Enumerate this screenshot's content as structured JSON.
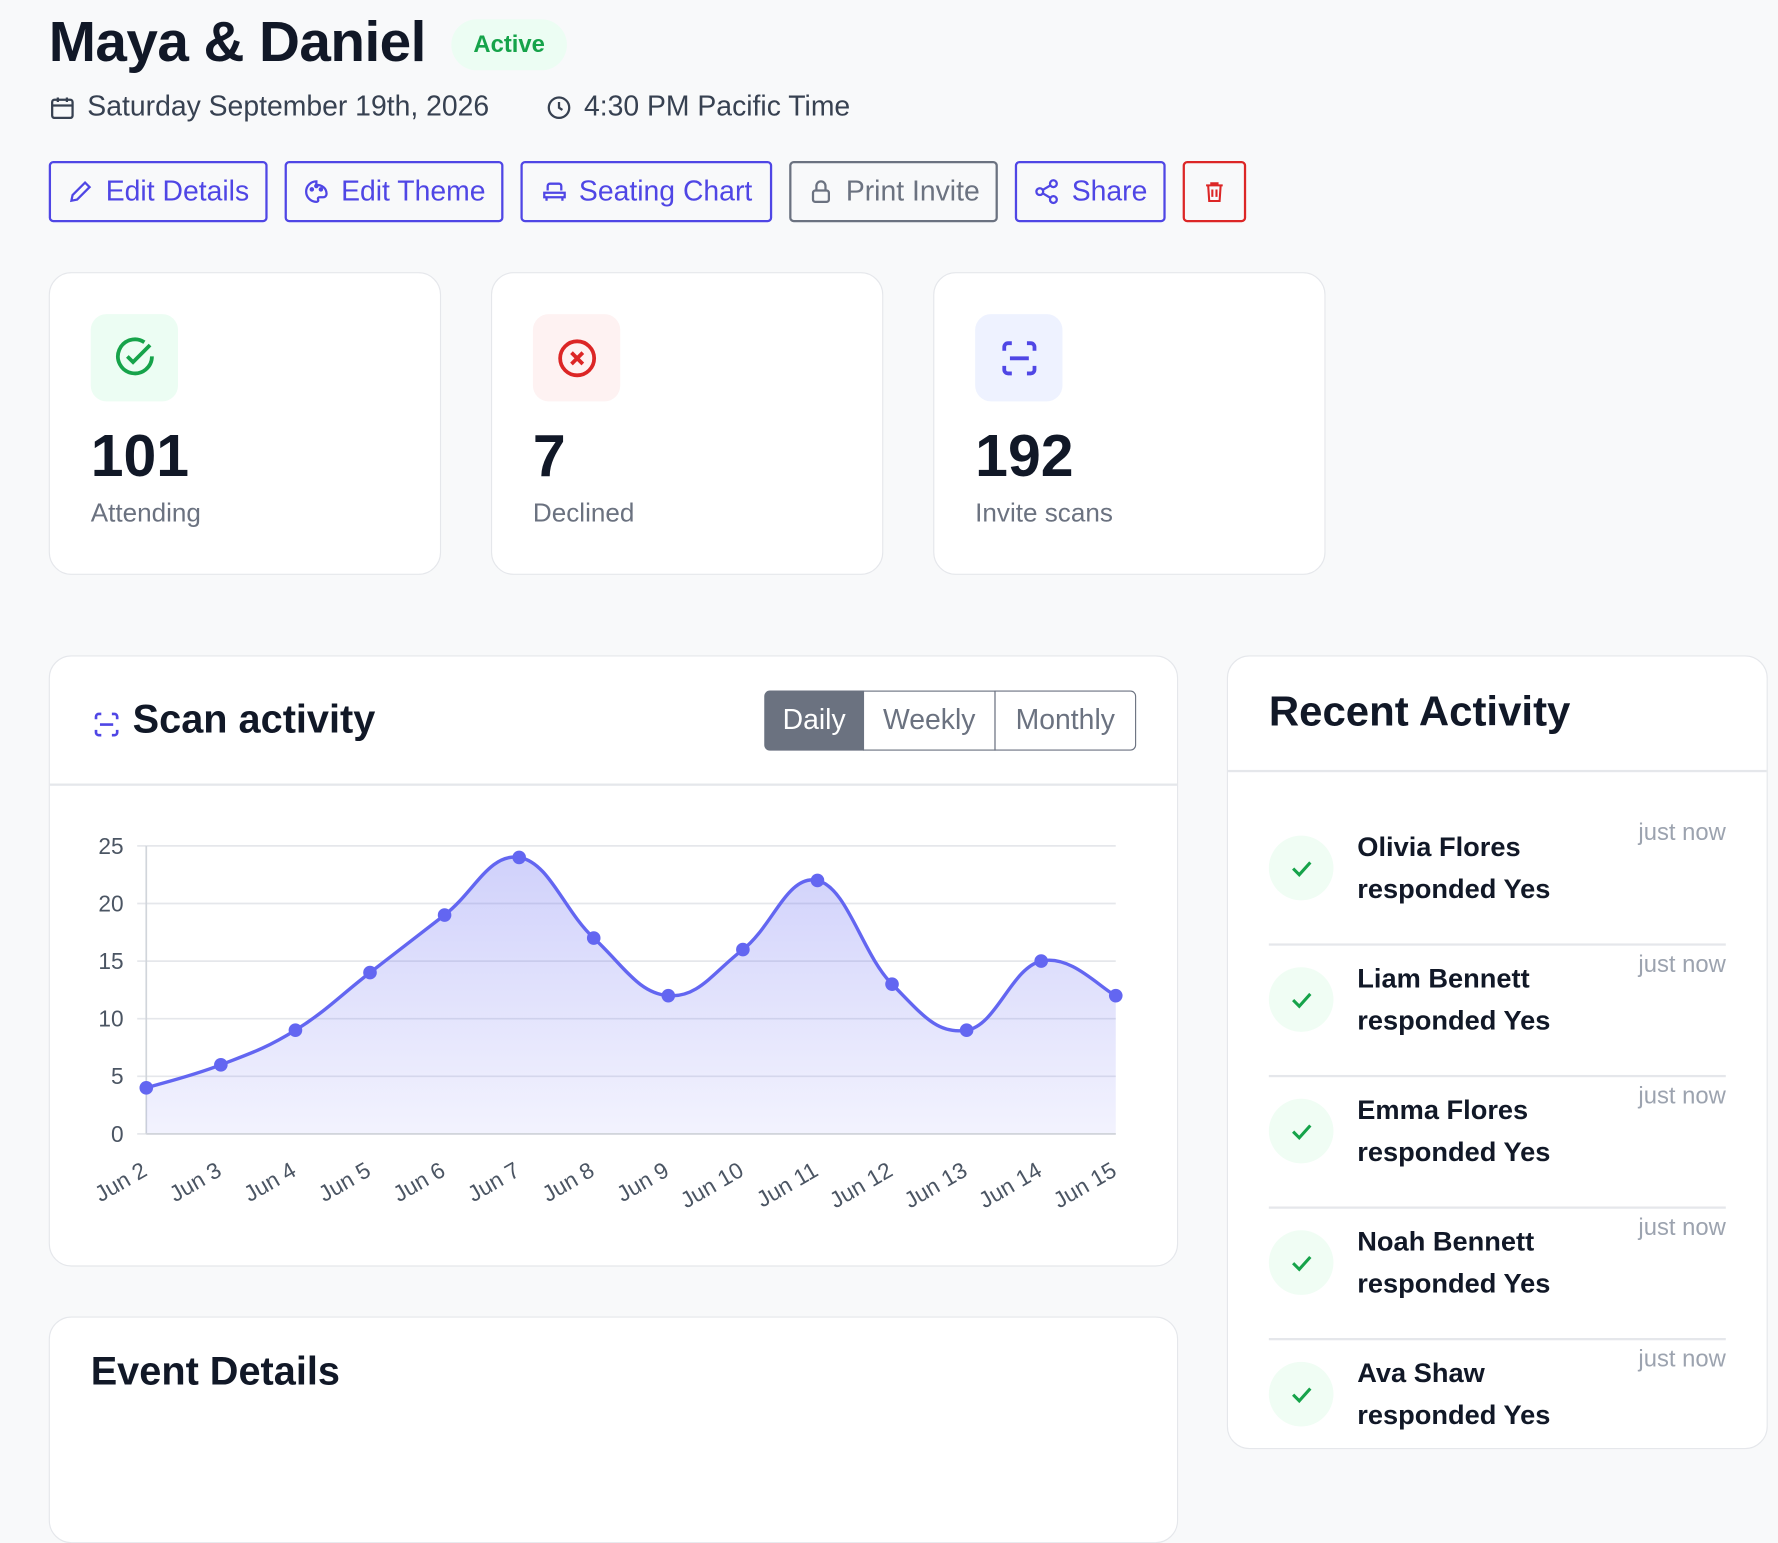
{
  "header": {
    "title": "Maya & Daniel",
    "status": "Active",
    "date": "Saturday September 19th, 2026",
    "time": "4:30 PM Pacific Time"
  },
  "actions": [
    "Edit Details",
    "Edit Theme",
    "Seating Chart",
    "Print Invite",
    "Share"
  ],
  "stats": [
    {
      "value": 101,
      "label": "Attending"
    },
    {
      "value": 7,
      "label": "Declined"
    },
    {
      "value": 192,
      "label": "Invite scans"
    }
  ],
  "scan_activity": {
    "title": "Scan activity",
    "tabs": [
      "Daily",
      "Weekly",
      "Monthly"
    ],
    "chart": {
      "type": "line",
      "categories": [
        "Jun 2",
        "Jun 3",
        "Jun 4",
        "Jun 5",
        "Jun 6",
        "Jun 7",
        "Jun 8",
        "Jun 9",
        "Jun 10",
        "Jun 11",
        "Jun 12",
        "Jun 13",
        "Jun 14",
        "Jun 15"
      ],
      "values": [
        4,
        6,
        9,
        14,
        19,
        24,
        17,
        12,
        16,
        22,
        13,
        9,
        15,
        12
      ],
      "color": "#6366f1",
      "ylim": [
        0,
        25
      ],
      "yticks": [
        0,
        5,
        10,
        15,
        20,
        25
      ],
      "grid": true
    }
  },
  "recent_activity": {
    "title": "Recent Activity",
    "items": [
      {
        "name": "Olivia Flores",
        "action": "responded Yes",
        "time": "just now"
      },
      {
        "name": "Liam Bennett",
        "action": "responded Yes",
        "time": "just now"
      },
      {
        "name": "Emma Flores",
        "action": "responded Yes",
        "time": "just now"
      },
      {
        "name": "Noah Bennett",
        "action": "responded Yes",
        "time": "just now"
      },
      {
        "name": "Ava Shaw",
        "action": "responded Yes",
        "time": "just now"
      }
    ]
  },
  "event_details": {
    "title": "Event Details"
  }
}
